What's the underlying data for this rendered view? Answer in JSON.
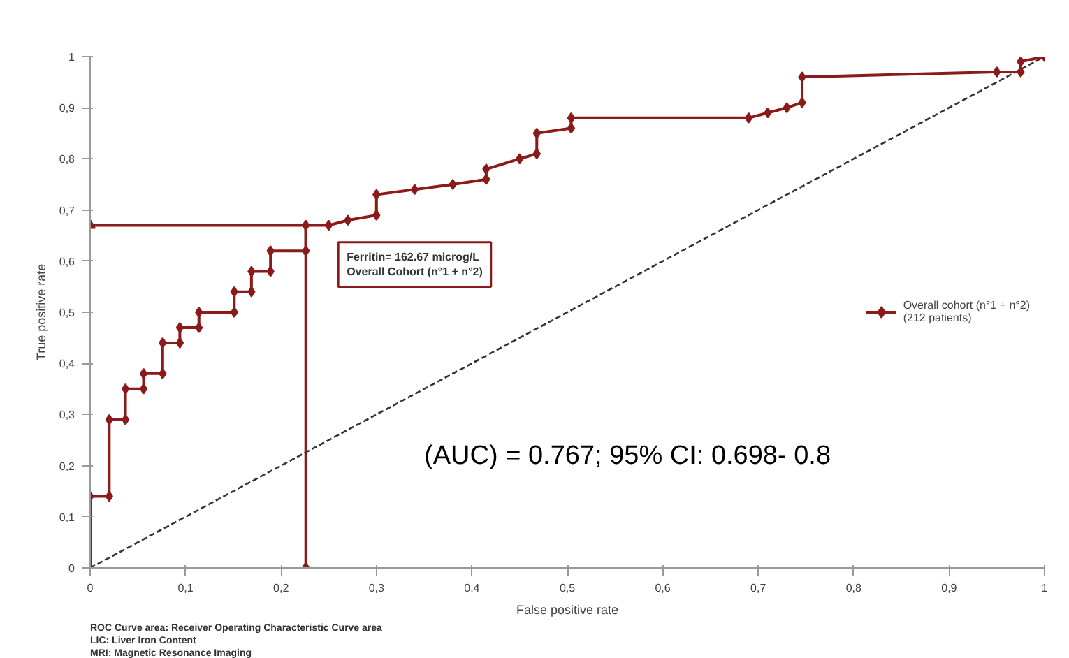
{
  "chart_data": {
    "type": "line",
    "xlabel": "False positive rate",
    "ylabel": "True positive rate",
    "xlim": [
      0,
      1
    ],
    "ylim": [
      0,
      1
    ],
    "xticks": [
      0,
      {
        "value": 0.1,
        "label": "0,1"
      },
      {
        "value": 0.2,
        "label": "0,2"
      },
      {
        "value": 0.3,
        "label": "0,3"
      },
      {
        "value": 0.4,
        "label": "0,4"
      },
      {
        "value": 0.5,
        "label": "0,5"
      },
      {
        "value": 0.6,
        "label": "0,6"
      },
      {
        "value": 0.7,
        "label": "0,7"
      },
      {
        "value": 0.8,
        "label": "0,8"
      },
      {
        "value": 0.9,
        "label": "0,9"
      },
      1
    ],
    "yticks": [
      0,
      {
        "value": 0.1,
        "label": "0,1"
      },
      {
        "value": 0.2,
        "label": "0,2"
      },
      {
        "value": 0.3,
        "label": "0,3"
      },
      {
        "value": 0.4,
        "label": "0,4"
      },
      {
        "value": 0.5,
        "label": "0,5"
      },
      {
        "value": 0.6,
        "label": "0,6"
      },
      {
        "value": 0.7,
        "label": "0,7"
      },
      {
        "value": 0.8,
        "label": "0,8"
      },
      {
        "value": 0.9,
        "label": "0,9"
      },
      1
    ],
    "grid": false,
    "legend": "right",
    "series": [
      {
        "name": "Overall cohort (n°1 + n°2)\n(212 patients)",
        "color": "#8b1a1a",
        "marker": "diamond",
        "x": [
          0,
          0,
          0.02,
          0.02,
          0.037,
          0.037,
          0.056,
          0.056,
          0.076,
          0.076,
          0.094,
          0.094,
          0.114,
          0.114,
          0.151,
          0.151,
          0.169,
          0.169,
          0.189,
          0.189,
          0.226,
          0.226,
          0.25,
          0.27,
          0.3,
          0.3,
          0.34,
          0.38,
          0.415,
          0.415,
          0.45,
          0.468,
          0.468,
          0.504,
          0.504,
          0.69,
          0.71,
          0.73,
          0.746,
          0.746,
          0.95,
          0.975,
          0.975,
          1
        ],
        "values": [
          0,
          0.14,
          0.14,
          0.29,
          0.29,
          0.35,
          0.35,
          0.38,
          0.38,
          0.44,
          0.44,
          0.47,
          0.47,
          0.5,
          0.5,
          0.54,
          0.54,
          0.58,
          0.58,
          0.62,
          0.62,
          0.67,
          0.67,
          0.68,
          0.69,
          0.73,
          0.74,
          0.75,
          0.76,
          0.78,
          0.8,
          0.81,
          0.85,
          0.86,
          0.88,
          0.88,
          0.89,
          0.9,
          0.91,
          0.96,
          0.97,
          0.97,
          0.99,
          1
        ]
      },
      {
        "color": "#8b1a1a",
        "marker": "triangle",
        "x": [
          0,
          0.226,
          0.226
        ],
        "values": [
          0.67,
          0.67,
          0
        ]
      },
      {
        "color": "#333333",
        "line_style": "dashed",
        "marker": "none",
        "x": [
          0,
          1
        ],
        "values": [
          0,
          1
        ]
      }
    ],
    "annotations": [
      "Ferritin= 162.67 microg/L\nOverall Cohort (n°1 + n°2)",
      "(AUC) = 0.767; 95% CI: 0.698- 0.8",
      "ROC Curve area: Receiver Operating Characteristic Curve area",
      "LIC: Liver Iron Content",
      "MRI: Magnetic Resonance Imaging"
    ]
  }
}
